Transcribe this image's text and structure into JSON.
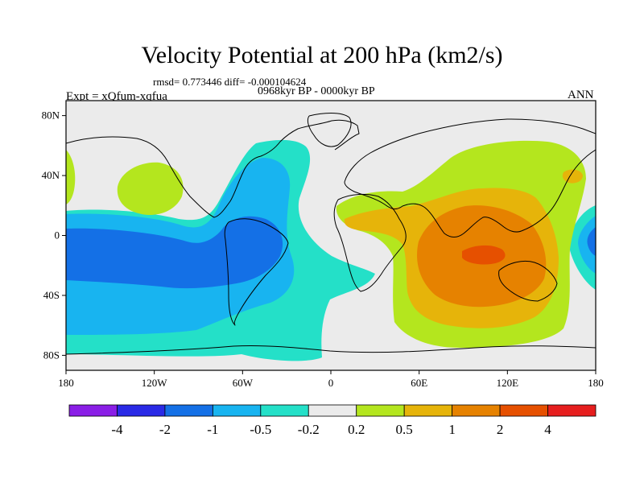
{
  "header": {
    "title": "Velocity Potential at 200 hPa (km2/s)",
    "stats": "rmsd= 0.773446 diff= -0.000104624",
    "period": "0968kyr BP - 0000kyr BP",
    "experiment": "Expt = xQfum-xqfua",
    "season": "ANN"
  },
  "map": {
    "projection": "cylindrical-equidistant",
    "lon_range": [
      -180,
      180
    ],
    "lat_range": [
      -90,
      90
    ],
    "lat_ticks": [
      {
        "value": 80,
        "label": "80N"
      },
      {
        "value": 40,
        "label": "40N"
      },
      {
        "value": 0,
        "label": "0"
      },
      {
        "value": -40,
        "label": "40S"
      },
      {
        "value": -80,
        "label": "80S"
      }
    ],
    "lon_ticks": [
      {
        "value": -180,
        "label": "180"
      },
      {
        "value": -120,
        "label": "120W"
      },
      {
        "value": -60,
        "label": "60W"
      },
      {
        "value": 0,
        "label": "0"
      },
      {
        "value": 60,
        "label": "60E"
      },
      {
        "value": 120,
        "label": "120E"
      },
      {
        "value": 180,
        "label": "180"
      }
    ]
  },
  "colorbar": {
    "colors": [
      "#8a1ee6",
      "#2a2ae6",
      "#1470e6",
      "#18b4f0",
      "#24e0c8",
      "#ebebeb",
      "#b4e61e",
      "#e6b40a",
      "#e68200",
      "#e65000",
      "#e61e1e"
    ],
    "labels": [
      "-4",
      "-2",
      "-1",
      "-0.5",
      "-0.2",
      "0.2",
      "0.5",
      "1",
      "2",
      "4"
    ]
  }
}
